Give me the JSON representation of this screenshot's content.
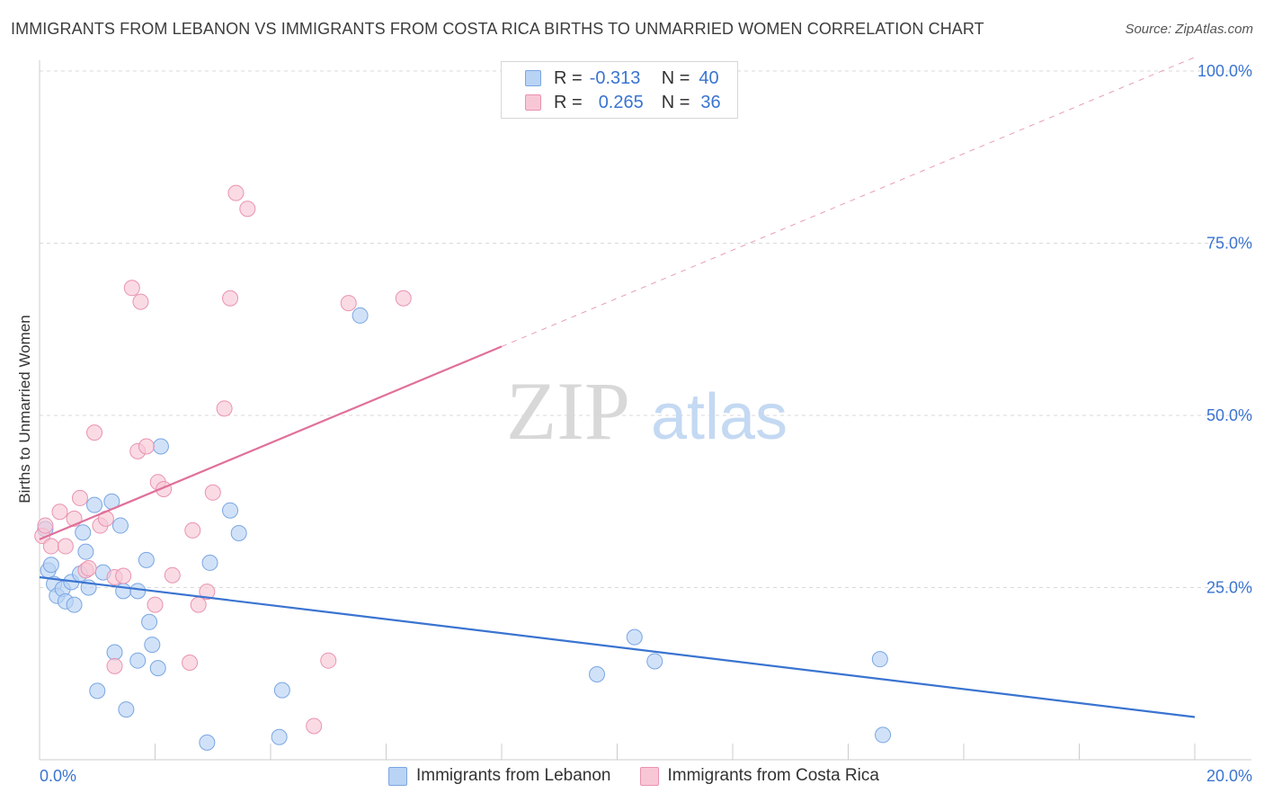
{
  "title": "IMMIGRANTS FROM LEBANON VS IMMIGRANTS FROM COSTA RICA BIRTHS TO UNMARRIED WOMEN CORRELATION CHART",
  "source": "Source: ZipAtlas.com",
  "watermark": {
    "zip": "ZIP",
    "atlas": "atlas"
  },
  "legend": {
    "row1": {
      "r_label": "R =",
      "r_value": "-0.313",
      "n_label": "N =",
      "n_value": "40"
    },
    "row2": {
      "r_label": "R =",
      "r_value": "0.265",
      "n_label": "N =",
      "n_value": "36"
    }
  },
  "bottom_legend": {
    "lebanon": "Immigrants from Lebanon",
    "costa_rica": "Immigrants from Costa Rica"
  },
  "colors": {
    "blue": "#3a74d0",
    "blue_fill": "#b9d3f5",
    "pink": "#e0709a",
    "pink_fill": "#f8c7d6",
    "grid": "#d9d9d9"
  },
  "chart_data": {
    "type": "scatter",
    "xlabel": "",
    "ylabel": "Births to Unmarried Women",
    "xlim": [
      0,
      20
    ],
    "ylim": [
      0,
      100
    ],
    "x_tick_labels": [
      {
        "value": 0,
        "label": "0.0%"
      },
      {
        "value": 20,
        "label": "20.0%"
      }
    ],
    "y_tick_labels": [
      {
        "value": 25,
        "label": "25.0%"
      },
      {
        "value": 50,
        "label": "50.0%"
      },
      {
        "value": 75,
        "label": "75.0%"
      },
      {
        "value": 100,
        "label": "100.0%"
      }
    ],
    "series": [
      {
        "name": "Immigrants from Lebanon",
        "color": "#3a74d0",
        "r": -0.313,
        "n": 40,
        "trend": {
          "x0": 0,
          "y0": 26.5,
          "x1": 20,
          "y1": 6.2,
          "solid_until": 20
        },
        "points": [
          [
            0.1,
            33.5
          ],
          [
            0.15,
            27.5
          ],
          [
            0.2,
            28.3
          ],
          [
            0.25,
            25.5
          ],
          [
            0.3,
            23.8
          ],
          [
            0.4,
            24.8
          ],
          [
            0.45,
            23.0
          ],
          [
            0.55,
            25.8
          ],
          [
            0.6,
            22.5
          ],
          [
            0.7,
            27.0
          ],
          [
            0.75,
            33.0
          ],
          [
            0.8,
            30.2
          ],
          [
            0.85,
            25.0
          ],
          [
            0.95,
            37.0
          ],
          [
            1.1,
            27.2
          ],
          [
            1.25,
            37.5
          ],
          [
            1.4,
            34.0
          ],
          [
            1.45,
            24.5
          ],
          [
            1.7,
            24.5
          ],
          [
            1.85,
            29.0
          ],
          [
            1.9,
            20.0
          ],
          [
            1.95,
            16.7
          ],
          [
            2.1,
            45.5
          ],
          [
            2.05,
            13.3
          ],
          [
            1.7,
            14.4
          ],
          [
            1.3,
            15.6
          ],
          [
            1.0,
            10.0
          ],
          [
            1.5,
            7.3
          ],
          [
            2.9,
            2.5
          ],
          [
            2.95,
            28.6
          ],
          [
            3.3,
            36.2
          ],
          [
            3.45,
            32.9
          ],
          [
            4.15,
            3.3
          ],
          [
            4.2,
            10.1
          ],
          [
            5.55,
            64.5
          ],
          [
            9.65,
            12.4
          ],
          [
            10.3,
            17.8
          ],
          [
            10.65,
            14.3
          ],
          [
            14.55,
            14.6
          ],
          [
            14.6,
            3.6
          ]
        ]
      },
      {
        "name": "Immigrants from Costa Rica",
        "color": "#e0709a",
        "r": 0.265,
        "n": 36,
        "trend": {
          "x0": 0,
          "y0": 32.0,
          "x1": 20,
          "y1": 102.0,
          "solid_until": 8
        },
        "points": [
          [
            0.05,
            32.5
          ],
          [
            0.1,
            34.0
          ],
          [
            0.2,
            31.0
          ],
          [
            0.35,
            36.0
          ],
          [
            0.45,
            31.0
          ],
          [
            0.6,
            35.0
          ],
          [
            0.7,
            38.0
          ],
          [
            0.8,
            27.5
          ],
          [
            0.85,
            27.8
          ],
          [
            0.95,
            47.5
          ],
          [
            1.05,
            34.0
          ],
          [
            1.15,
            35.0
          ],
          [
            1.3,
            26.5
          ],
          [
            1.3,
            13.6
          ],
          [
            1.45,
            26.7
          ],
          [
            1.6,
            68.5
          ],
          [
            1.75,
            66.5
          ],
          [
            1.7,
            44.8
          ],
          [
            1.85,
            45.5
          ],
          [
            2.0,
            22.5
          ],
          [
            2.05,
            40.3
          ],
          [
            2.15,
            39.3
          ],
          [
            2.3,
            26.8
          ],
          [
            2.6,
            14.1
          ],
          [
            2.65,
            33.3
          ],
          [
            2.75,
            22.5
          ],
          [
            2.9,
            24.4
          ],
          [
            3.0,
            38.8
          ],
          [
            3.2,
            51.0
          ],
          [
            3.3,
            67.0
          ],
          [
            3.4,
            82.3
          ],
          [
            3.6,
            80.0
          ],
          [
            4.75,
            4.9
          ],
          [
            5.0,
            14.4
          ],
          [
            5.35,
            66.3
          ],
          [
            6.3,
            67.0
          ]
        ]
      }
    ]
  }
}
